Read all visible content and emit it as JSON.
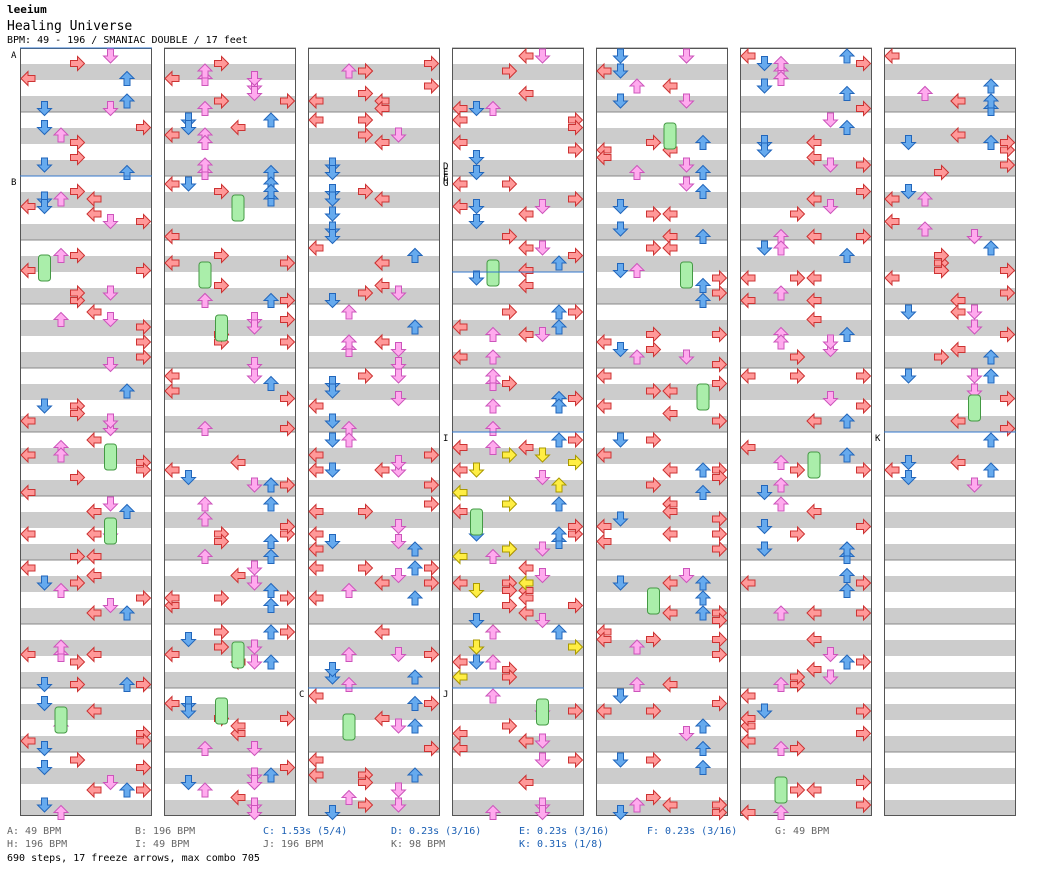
{
  "header": {
    "author": "leeium",
    "title": "Healing Universe",
    "subtitle": "BPM: 49 - 196 / SMANIAC DOUBLE / 17 feet"
  },
  "markers": {
    "A": "A",
    "B": "B",
    "C": "C",
    "D": "D",
    "E": "E",
    "F": "F",
    "G": "G",
    "H": "H",
    "I": "I",
    "J": "J",
    "K": "K"
  },
  "legend": [
    {
      "text": "A: 49 BPM",
      "tone": "gray"
    },
    {
      "text": "B: 196 BPM",
      "tone": "gray"
    },
    {
      "text": "C: 1.53s (5/4)",
      "tone": "blue"
    },
    {
      "text": "D: 0.23s (3/16)",
      "tone": "blue"
    },
    {
      "text": "E: 0.23s (3/16)",
      "tone": "blue"
    },
    {
      "text": "F: 0.23s (3/16)",
      "tone": "blue"
    },
    {
      "text": "G: 49 BPM",
      "tone": "gray"
    },
    {
      "text": "H: 196 BPM",
      "tone": "gray"
    },
    {
      "text": "I: 49 BPM",
      "tone": "gray"
    },
    {
      "text": "J: 196 BPM",
      "tone": "gray"
    },
    {
      "text": "K: 98 BPM",
      "tone": "gray"
    },
    {
      "text": "K: 0.31s (1/8)",
      "tone": "blue"
    }
  ],
  "footer": "690 steps, 17 freeze arrows, max combo 705",
  "colors": {
    "red": "#ff9999",
    "blue": "#66aaee",
    "pink": "#ffaaee",
    "yellow": "#ffee44",
    "green": "#aaeeaa",
    "stripe": "#cccccc",
    "marker_line": "#3377cc"
  },
  "chart_data": {
    "type": "table",
    "columns": 7,
    "measures_per_column": 12,
    "lanes_per_measure": 8,
    "lane_colors": [
      "red",
      "blue",
      "pink",
      "red",
      "red",
      "pink",
      "blue",
      "red"
    ],
    "total_steps": 690,
    "freeze_arrows": 17,
    "max_combo": 705,
    "markers": [
      {
        "id": "A",
        "column": 0,
        "measure": 0
      },
      {
        "id": "B",
        "column": 0,
        "measure": 2
      },
      {
        "id": "C",
        "column": 2,
        "measure": 10
      },
      {
        "id": "D",
        "column": 3,
        "measure": 3.5
      },
      {
        "id": "E",
        "column": 3,
        "measure": 3.5
      },
      {
        "id": "F",
        "column": 3,
        "measure": 3.5
      },
      {
        "id": "G",
        "column": 3,
        "measure": 3.5
      },
      {
        "id": "H",
        "column": 3,
        "measure": 3.5
      },
      {
        "id": "I",
        "column": 3,
        "measure": 6
      },
      {
        "id": "J",
        "column": 3,
        "measure": 10
      },
      {
        "id": "K",
        "column": 6,
        "measure": 6
      }
    ]
  }
}
